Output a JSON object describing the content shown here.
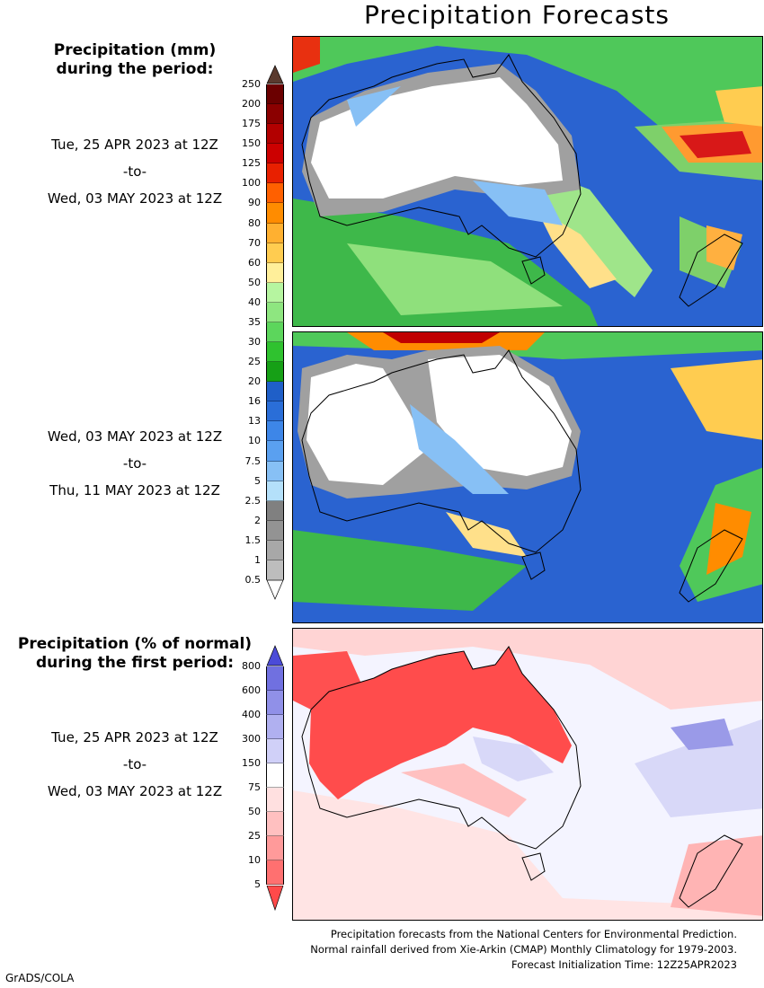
{
  "title": "Precipitation Forecasts",
  "legend1": {
    "heading": [
      "Precipitation (mm)",
      "during the period:"
    ],
    "ticks": [
      "250",
      "200",
      "175",
      "150",
      "125",
      "100",
      "90",
      "80",
      "70",
      "60",
      "50",
      "40",
      "35",
      "30",
      "25",
      "20",
      "16",
      "13",
      "10",
      "7.5",
      "5",
      "2.5",
      "2",
      "1.5",
      "1",
      "0.5"
    ],
    "colors": [
      "#6b0000",
      "#8b0000",
      "#b20000",
      "#cc0000",
      "#e82000",
      "#ff6000",
      "#ff8c00",
      "#ffb030",
      "#ffcc50",
      "#ffef9a",
      "#b6f5a0",
      "#8ee680",
      "#5cd65c",
      "#2fc22f",
      "#16a016",
      "#1f5fc8",
      "#2a6ed8",
      "#3d86e8",
      "#5aa0f0",
      "#87c0f5",
      "#b4e0fa",
      "#808080",
      "#939393",
      "#a8a8a8",
      "#bdbdbd"
    ],
    "top_arrow_color": "#5a3a2e"
  },
  "period1": {
    "start": "Tue, 25 APR 2023 at 12Z",
    "sep": "-to-",
    "end": "Wed, 03 MAY 2023 at 12Z"
  },
  "period2": {
    "start": "Wed, 03 MAY 2023 at 12Z",
    "sep": "-to-",
    "end": "Thu, 11 MAY 2023 at 12Z"
  },
  "legend2": {
    "heading": [
      "Precipitation (% of normal)",
      "during the first period:"
    ],
    "ticks": [
      "800",
      "600",
      "400",
      "300",
      "150",
      "75",
      "50",
      "25",
      "10",
      "5"
    ],
    "colors": [
      "#7070e0",
      "#9090e8",
      "#b0b0f0",
      "#d0d0f8",
      "#ffffff",
      "#ffe0e0",
      "#ffc0c0",
      "#ff9a9a",
      "#ff7070"
    ],
    "top_arrow_color": "#4b4bd8",
    "bottom_arrow_color": "#ff4a4a"
  },
  "period3": {
    "start": "Tue, 25 APR 2023 at 12Z",
    "sep": "-to-",
    "end": "Wed, 03 MAY 2023 at 12Z"
  },
  "footer": [
    "Precipitation forecasts from the National Centers for Environmental Prediction.",
    "Normal rainfall derived from Xie-Arkin (CMAP) Monthly Climatology for 1979-2003.",
    "Forecast Initialization Time: 12Z25APR2023"
  ],
  "credit": "GrADS/COLA"
}
